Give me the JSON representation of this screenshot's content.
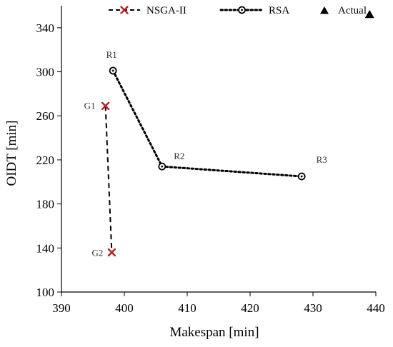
{
  "chart_data": {
    "type": "scatter",
    "title": "",
    "xlabel": "Makespan [min]",
    "ylabel": "OIDT [min]",
    "xlim": [
      390,
      440
    ],
    "ylim": [
      100,
      360
    ],
    "xticks": [
      390,
      400,
      410,
      420,
      430,
      440
    ],
    "yticks": [
      100,
      140,
      180,
      220,
      260,
      300,
      340
    ],
    "grid": false,
    "legend_position": "top",
    "series": [
      {
        "name": "NSGA-II",
        "marker": "x",
        "line": "dashed",
        "color": "#b22222",
        "line_color": "#000000",
        "points": [
          {
            "label": "G1",
            "x": 397,
            "y": 269
          },
          {
            "label": "G2",
            "x": 398,
            "y": 136
          }
        ]
      },
      {
        "name": "RSA",
        "marker": "open-circle",
        "line": "dotted",
        "color": "#000000",
        "line_color": "#000000",
        "points": [
          {
            "label": "R1",
            "x": 398.2,
            "y": 301
          },
          {
            "label": "R2",
            "x": 406,
            "y": 214
          },
          {
            "label": "R3",
            "x": 428.2,
            "y": 205
          }
        ]
      },
      {
        "name": "Actual",
        "marker": "triangle",
        "line": "none",
        "color": "#000000",
        "line_color": "#000000",
        "points": [
          {
            "label": "",
            "x": 439,
            "y": 352
          }
        ]
      }
    ]
  }
}
